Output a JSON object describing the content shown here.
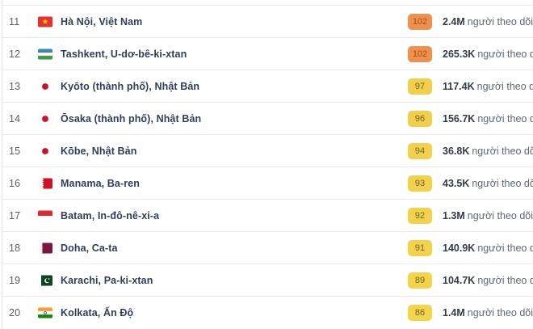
{
  "list": {
    "followers_suffix": "người theo dõi",
    "rows": [
      {
        "rank": "11",
        "city": "Hà Nội, Việt Nam",
        "flag": "vn",
        "flag_name": "vietnam-flag-icon",
        "score": "102",
        "score_bg": "#F0904D",
        "score_text_color": "#9C4B17",
        "followers": "2.4M"
      },
      {
        "rank": "12",
        "city": "Tashkent, U-dơ-bê-ki-xtan",
        "flag": "uz",
        "flag_name": "uzbekistan-flag-icon",
        "score": "102",
        "score_bg": "#F0904D",
        "score_text_color": "#9C4B17",
        "followers": "265.3K"
      },
      {
        "rank": "13",
        "city": "Kyōto (thành phố), Nhật Bản",
        "flag": "jp",
        "flag_name": "japan-flag-icon",
        "score": "97",
        "score_bg": "#F2CF4B",
        "score_text_color": "#6F6335",
        "followers": "117.4K"
      },
      {
        "rank": "14",
        "city": "Ōsaka (thành phố), Nhật Bản",
        "flag": "jp",
        "flag_name": "japan-flag-icon",
        "score": "96",
        "score_bg": "#F2CF4B",
        "score_text_color": "#6F6335",
        "followers": "156.7K"
      },
      {
        "rank": "15",
        "city": "Kōbe, Nhật Bản",
        "flag": "jp",
        "flag_name": "japan-flag-icon",
        "score": "94",
        "score_bg": "#F2D04B",
        "score_text_color": "#6F6335",
        "followers": "36.8K"
      },
      {
        "rank": "16",
        "city": "Manama, Ba-ren",
        "flag": "bh",
        "flag_name": "bahrain-flag-icon",
        "score": "93",
        "score_bg": "#F3D04A",
        "score_text_color": "#6F6335",
        "followers": "43.5K"
      },
      {
        "rank": "17",
        "city": "Batam, In-đô-nê-xi-a",
        "flag": "id",
        "flag_name": "indonesia-flag-icon",
        "score": "92",
        "score_bg": "#F3D14A",
        "score_text_color": "#6F6335",
        "followers": "1.3M"
      },
      {
        "rank": "18",
        "city": "Doha, Ca-ta",
        "flag": "qa",
        "flag_name": "qatar-flag-icon",
        "score": "91",
        "score_bg": "#F3D24A",
        "score_text_color": "#6F6335",
        "followers": "140.9K"
      },
      {
        "rank": "19",
        "city": "Karachi, Pa-ki-xtan",
        "flag": "pk",
        "flag_name": "pakistan-flag-icon",
        "score": "89",
        "score_bg": "#F4D349",
        "score_text_color": "#6F6335",
        "followers": "104.7K"
      },
      {
        "rank": "20",
        "city": "Kolkata, Ấn Độ",
        "flag": "in",
        "flag_name": "india-flag-icon",
        "score": "86",
        "score_bg": "#F4D449",
        "score_text_color": "#6F6335",
        "followers": "1.4M"
      }
    ]
  }
}
